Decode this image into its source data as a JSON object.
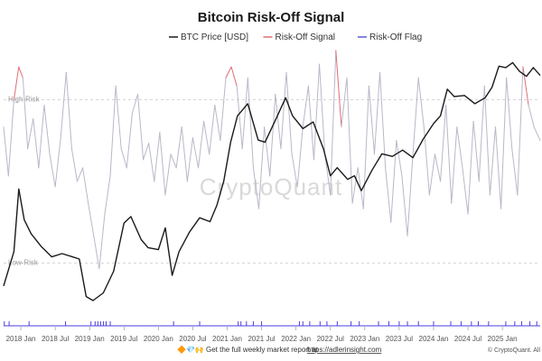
{
  "chart_data": {
    "type": "line",
    "title": "Bitcoin Risk-Off Signal",
    "legend": {
      "placement": "top-center",
      "items": [
        {
          "name": "BTC Price [USD]",
          "color": "#1a1a1a"
        },
        {
          "name": "Risk-Off Signal",
          "color": "#e06c75"
        },
        {
          "name": "Risk-Off Flag",
          "color": "#5b5bd6"
        }
      ]
    },
    "colors": {
      "price": "#1a1a1a",
      "signal_low": "#b8b8c8",
      "signal_high": "#e06c75",
      "signal_lowzone": "#6a8fd8",
      "flag": "#4b3fe0",
      "reference": "#c8c8c8",
      "footer_link": "#1a4fb3"
    },
    "x_axis": {
      "ticks": [
        "2018 Jan",
        "2018 Jul",
        "2019 Jan",
        "2019 Jul",
        "2020 Jan",
        "2020 Jul",
        "2021 Jan",
        "2021 Jul",
        "2022 Jan",
        "2022 Jul",
        "2023 Jan",
        "2023 Jul",
        "2024 Jan",
        "2024 Jul",
        "2025 Jan"
      ],
      "tick_years": [
        2018.0,
        2018.5,
        2019.0,
        2019.5,
        2020.0,
        2020.5,
        2021.0,
        2021.5,
        2022.0,
        2022.5,
        2023.0,
        2023.5,
        2024.0,
        2024.5,
        2025.0
      ],
      "range": [
        2017.75,
        2025.55
      ]
    },
    "reference_lines": [
      {
        "label": "High-Risk",
        "value": 0.8
      },
      {
        "label": "Low-Risk",
        "value": 0.2
      }
    ],
    "series": [
      {
        "name": "BTC Price [USD]",
        "scale": "log",
        "x": [
          2017.75,
          2017.9,
          2017.97,
          2018.05,
          2018.15,
          2018.3,
          2018.45,
          2018.6,
          2018.75,
          2018.85,
          2018.95,
          2019.05,
          2019.2,
          2019.35,
          2019.5,
          2019.6,
          2019.75,
          2019.85,
          2020.0,
          2020.1,
          2020.2,
          2020.3,
          2020.45,
          2020.6,
          2020.75,
          2020.85,
          2020.95,
          2021.05,
          2021.15,
          2021.3,
          2021.45,
          2021.55,
          2021.7,
          2021.85,
          2021.95,
          2022.1,
          2022.25,
          2022.4,
          2022.5,
          2022.6,
          2022.75,
          2022.85,
          2022.95,
          2023.1,
          2023.25,
          2023.4,
          2023.55,
          2023.7,
          2023.85,
          2024.0,
          2024.1,
          2024.2,
          2024.3,
          2024.45,
          2024.6,
          2024.75,
          2024.85,
          2024.95,
          2025.05,
          2025.15,
          2025.25,
          2025.35,
          2025.45,
          2025.55
        ],
        "values": [
          4300,
          7000,
          17000,
          11000,
          9000,
          7500,
          6500,
          6800,
          6500,
          6300,
          3700,
          3500,
          3900,
          5300,
          10500,
          11500,
          8300,
          7400,
          7200,
          9800,
          5000,
          7000,
          9200,
          11300,
          10700,
          13500,
          19000,
          33000,
          48000,
          57000,
          34000,
          33000,
          45000,
          62000,
          48000,
          40000,
          44000,
          30000,
          20500,
          23000,
          19500,
          20500,
          16600,
          22000,
          28000,
          27000,
          29500,
          26500,
          34500,
          43000,
          48000,
          70000,
          63000,
          64000,
          57000,
          62000,
          72000,
          97000,
          95000,
          102000,
          90000,
          84000,
          95000,
          85000
        ]
      },
      {
        "name": "Risk-Off Signal",
        "x": [
          2017.75,
          2017.82,
          2017.9,
          2017.97,
          2018.03,
          2018.1,
          2018.18,
          2018.26,
          2018.34,
          2018.42,
          2018.5,
          2018.58,
          2018.66,
          2018.74,
          2018.82,
          2018.9,
          2018.98,
          2019.06,
          2019.14,
          2019.22,
          2019.3,
          2019.38,
          2019.46,
          2019.54,
          2019.62,
          2019.7,
          2019.78,
          2019.86,
          2019.94,
          2020.02,
          2020.1,
          2020.18,
          2020.26,
          2020.34,
          2020.42,
          2020.5,
          2020.58,
          2020.66,
          2020.74,
          2020.82,
          2020.9,
          2020.98,
          2021.06,
          2021.14,
          2021.22,
          2021.3,
          2021.38,
          2021.46,
          2021.54,
          2021.62,
          2021.7,
          2021.78,
          2021.86,
          2021.94,
          2022.02,
          2022.1,
          2022.18,
          2022.26,
          2022.34,
          2022.42,
          2022.5,
          2022.58,
          2022.66,
          2022.74,
          2022.82,
          2022.9,
          2022.98,
          2023.06,
          2023.14,
          2023.22,
          2023.3,
          2023.38,
          2023.46,
          2023.54,
          2023.62,
          2023.7,
          2023.78,
          2023.86,
          2023.94,
          2024.02,
          2024.1,
          2024.18,
          2024.26,
          2024.34,
          2024.42,
          2024.5,
          2024.58,
          2024.66,
          2024.74,
          2024.82,
          2024.9,
          2024.98,
          2025.06,
          2025.14,
          2025.22,
          2025.3,
          2025.38,
          2025.46,
          2025.55
        ],
        "values": [
          0.7,
          0.52,
          0.8,
          0.92,
          0.88,
          0.62,
          0.73,
          0.55,
          0.78,
          0.6,
          0.48,
          0.66,
          0.9,
          0.62,
          0.5,
          0.55,
          0.42,
          0.3,
          0.18,
          0.38,
          0.52,
          0.85,
          0.62,
          0.55,
          0.75,
          0.82,
          0.58,
          0.64,
          0.5,
          0.68,
          0.45,
          0.6,
          0.55,
          0.7,
          0.5,
          0.66,
          0.55,
          0.72,
          0.6,
          0.78,
          0.65,
          0.88,
          0.92,
          0.85,
          0.62,
          0.88,
          0.55,
          0.4,
          0.7,
          0.52,
          0.82,
          0.62,
          0.9,
          0.6,
          0.48,
          0.7,
          0.85,
          0.58,
          0.93,
          0.6,
          0.45,
          0.98,
          0.7,
          0.88,
          0.42,
          0.55,
          0.4,
          0.85,
          0.6,
          0.9,
          0.55,
          0.35,
          0.65,
          0.52,
          0.3,
          0.6,
          0.88,
          0.7,
          0.45,
          0.6,
          0.5,
          0.78,
          0.42,
          0.7,
          0.55,
          0.38,
          0.72,
          0.5,
          0.85,
          0.45,
          0.7,
          0.4,
          0.88,
          0.62,
          0.45,
          0.92,
          0.78,
          0.7,
          0.65
        ]
      },
      {
        "name": "Risk-Off Flag",
        "flag_years": [
          2017.76,
          2017.83,
          2018.12,
          2018.65,
          2019.02,
          2019.08,
          2019.12,
          2019.16,
          2019.2,
          2019.24,
          2019.3,
          2020.22,
          2020.6,
          2021.16,
          2021.2,
          2021.28,
          2021.38,
          2021.5,
          2022.05,
          2022.1,
          2022.2,
          2022.35,
          2022.45,
          2022.6,
          2022.8,
          2022.92,
          2023.2,
          2023.35,
          2023.5,
          2023.62,
          2023.78,
          2024.0,
          2024.25,
          2024.4,
          2024.55,
          2024.65,
          2024.8,
          2025.05,
          2025.18,
          2025.28,
          2025.4,
          2025.5
        ]
      }
    ]
  },
  "watermark": "CryptoQuant",
  "footer": {
    "emoji": "🔶💎🙌",
    "text_before": "Get the full weekly market report at",
    "link": "https://adlerinsight.com",
    "credit": "© CryptoQuant. All"
  }
}
